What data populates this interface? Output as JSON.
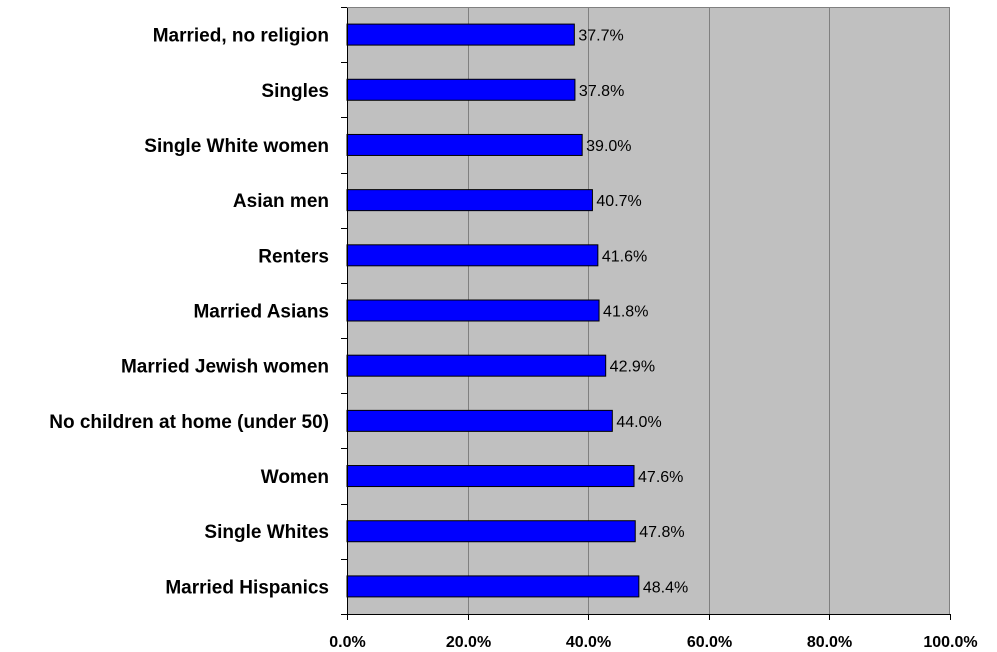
{
  "chart_data": {
    "type": "bar",
    "orientation": "horizontal",
    "categories": [
      "Married, no religion",
      "Singles",
      "Single White women",
      "Asian men",
      "Renters",
      "Married Asians",
      "Married Jewish women",
      "No children at home (under 50)",
      "Women",
      "Single Whites",
      "Married Hispanics"
    ],
    "values": [
      37.7,
      37.8,
      39.0,
      40.7,
      41.6,
      41.8,
      42.9,
      44.0,
      47.6,
      47.8,
      48.4
    ],
    "value_labels": [
      "37.7%",
      "37.8%",
      "39.0%",
      "40.7%",
      "41.6%",
      "41.8%",
      "42.9%",
      "44.0%",
      "47.6%",
      "47.8%",
      "48.4%"
    ],
    "xlim": [
      0,
      100
    ],
    "x_ticks": [
      "0.0%",
      "20.0%",
      "40.0%",
      "60.0%",
      "80.0%",
      "100.0%"
    ],
    "title": "",
    "xlabel": "",
    "ylabel": "",
    "grid": "vertical",
    "legend": "none",
    "colors": {
      "bar": "#0000ff",
      "plot_background": "#c0c0c0",
      "gridline": "#808080"
    }
  }
}
